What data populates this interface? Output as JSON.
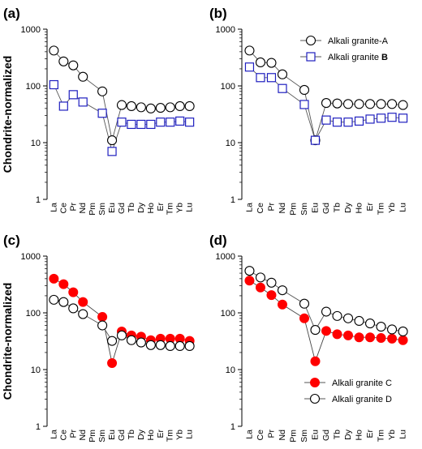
{
  "chart_data": [
    {
      "type": "line",
      "panel_label": "(a)",
      "ylabel": "Chondrite-normalized",
      "log_y": true,
      "ylim": [
        1,
        1000
      ],
      "y_ticks": [
        "1",
        "10",
        "100",
        "1000"
      ],
      "categories": [
        "La",
        "Ce",
        "Pr",
        "Nd",
        "Pm",
        "Sm",
        "Eu",
        "Gd",
        "Tb",
        "Dy",
        "Ho",
        "Er",
        "Tm",
        "Yb",
        "Lu"
      ],
      "legend": "none",
      "series": [
        {
          "name": "Alkali granite-A",
          "marker": "circle-open",
          "color": "#000000",
          "values": [
            420,
            270,
            230,
            145,
            null,
            80,
            11,
            46,
            44,
            42,
            40,
            41,
            42,
            44,
            44
          ]
        },
        {
          "name": "Alkali granite B",
          "marker": "square-open",
          "color": "#1f1fbf",
          "values": [
            105,
            44,
            70,
            52,
            null,
            33,
            7,
            23,
            21,
            21,
            21,
            23,
            23,
            24,
            23
          ]
        }
      ]
    },
    {
      "type": "line",
      "panel_label": "(b)",
      "log_y": true,
      "ylim": [
        1,
        1000
      ],
      "y_ticks": [
        "1",
        "10",
        "100",
        "1000"
      ],
      "categories": [
        "La",
        "Ce",
        "Pr",
        "Nd",
        "Pm",
        "Sm",
        "Eu",
        "Gd",
        "Tb",
        "Dy",
        "Ho",
        "Er",
        "Tm",
        "Yb",
        "Lu"
      ],
      "legend": "top-right",
      "legend_entries": [
        {
          "label": "Alkali granite-A",
          "bold_suffix": "",
          "marker": "circle-open",
          "color": "#000000"
        },
        {
          "label": "Alkali granite ",
          "bold_suffix": "B",
          "marker": "square-open",
          "color": "#1f1fbf"
        }
      ],
      "series": [
        {
          "name": "Alkali granite-A",
          "marker": "circle-open",
          "color": "#000000",
          "values": [
            420,
            260,
            255,
            160,
            null,
            85,
            11,
            50,
            49,
            48,
            48,
            48,
            48,
            48,
            46
          ]
        },
        {
          "name": "Alkali granite B",
          "marker": "square-open",
          "color": "#1f1fbf",
          "values": [
            215,
            140,
            140,
            90,
            null,
            47,
            11,
            25,
            23,
            23,
            24,
            26,
            27,
            28,
            27
          ]
        }
      ]
    },
    {
      "type": "line",
      "panel_label": "(c)",
      "ylabel": "Chondrite-normalized",
      "log_y": true,
      "ylim": [
        1,
        1000
      ],
      "y_ticks": [
        "1",
        "10",
        "100",
        "1000"
      ],
      "categories": [
        "La",
        "Ce",
        "Pr",
        "Nd",
        "Pm",
        "Sm",
        "Eu",
        "Gd",
        "Tb",
        "Dy",
        "Ho",
        "Er",
        "Tm",
        "Yb",
        "Lu"
      ],
      "legend": "none",
      "series": [
        {
          "name": "Alkali granite C",
          "marker": "circle-filled",
          "color": "#ff0000",
          "values": [
            400,
            320,
            230,
            155,
            null,
            85,
            13,
            47,
            40,
            38,
            33,
            35,
            35,
            35,
            32
          ]
        },
        {
          "name": "Alkali granite D",
          "marker": "circle-open",
          "color": "#000000",
          "values": [
            170,
            155,
            120,
            95,
            null,
            60,
            32,
            40,
            33,
            30,
            27,
            27,
            26,
            26,
            26
          ]
        }
      ]
    },
    {
      "type": "line",
      "panel_label": "(d)",
      "log_y": true,
      "ylim": [
        1,
        1000
      ],
      "y_ticks": [
        "1",
        "10",
        "100",
        "1000"
      ],
      "categories": [
        "La",
        "Ce",
        "Pr",
        "Nd",
        "Pm",
        "Sm",
        "Eu",
        "Gd",
        "Tb",
        "Dy",
        "Ho",
        "Er",
        "Tm",
        "Yb",
        "Lu"
      ],
      "legend": "bottom-right",
      "legend_entries": [
        {
          "label": "Alkali granite C",
          "bold_suffix": "",
          "marker": "circle-filled",
          "color": "#ff0000"
        },
        {
          "label": "Alkali granite D",
          "bold_suffix": "",
          "marker": "circle-open",
          "color": "#000000"
        }
      ],
      "series": [
        {
          "name": "Alkali granite C",
          "marker": "circle-filled",
          "color": "#ff0000",
          "values": [
            370,
            280,
            205,
            140,
            null,
            80,
            14,
            48,
            42,
            40,
            37,
            37,
            36,
            35,
            33
          ]
        },
        {
          "name": "Alkali granite D",
          "marker": "circle-open",
          "color": "#000000",
          "values": [
            550,
            420,
            340,
            250,
            null,
            145,
            50,
            105,
            88,
            80,
            72,
            65,
            57,
            51,
            47
          ]
        }
      ]
    }
  ]
}
